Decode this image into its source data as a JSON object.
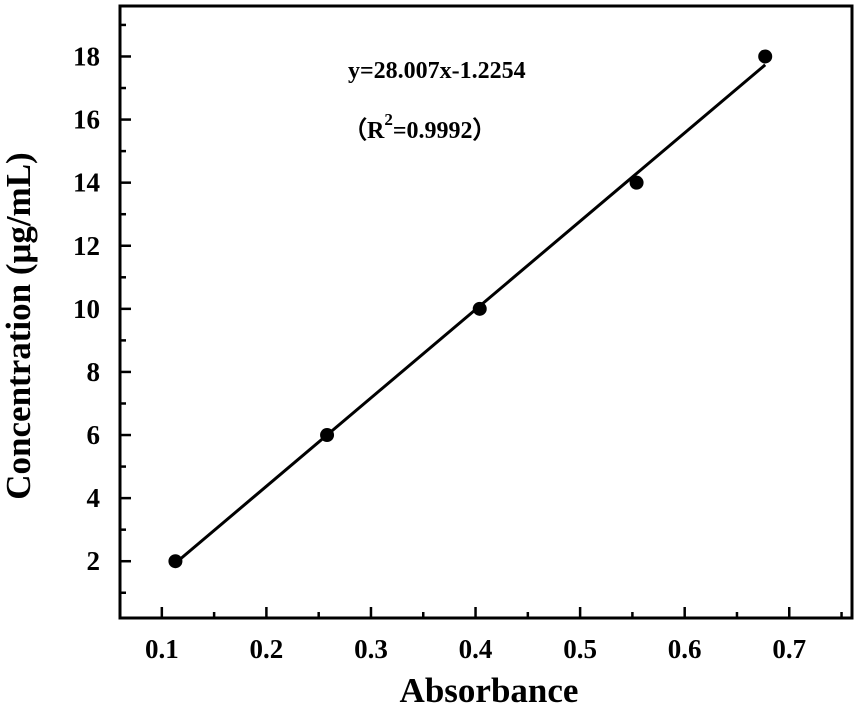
{
  "chart_data": {
    "type": "scatter",
    "xlabel": "Absorbance",
    "ylabel": "Concentration (μg/mL)",
    "xlim": [
      0.06,
      0.76
    ],
    "ylim": [
      0.2,
      19.6
    ],
    "x_ticks": [
      0.1,
      0.2,
      0.3,
      0.4,
      0.5,
      0.6,
      0.7
    ],
    "x_tick_labels": [
      "0.1",
      "0.2",
      "0.3",
      "0.4",
      "0.5",
      "0.6",
      "0.7"
    ],
    "y_ticks": [
      2,
      4,
      6,
      8,
      10,
      12,
      14,
      16,
      18
    ],
    "y_tick_labels": [
      "2",
      "4",
      "6",
      "8",
      "10",
      "12",
      "14",
      "16",
      "18"
    ],
    "points": [
      {
        "x": 0.113,
        "y": 2
      },
      {
        "x": 0.258,
        "y": 6
      },
      {
        "x": 0.404,
        "y": 10
      },
      {
        "x": 0.554,
        "y": 14
      },
      {
        "x": 0.677,
        "y": 18
      }
    ],
    "fit": {
      "slope": 28.007,
      "intercept": -1.2254,
      "x_range": [
        0.113,
        0.677
      ]
    },
    "equation": "y=28.007x-1.2254",
    "r2_open": "（R",
    "r2_sup": "2",
    "r2_rest": "=0.9992）",
    "grid": false,
    "legend": "none"
  }
}
